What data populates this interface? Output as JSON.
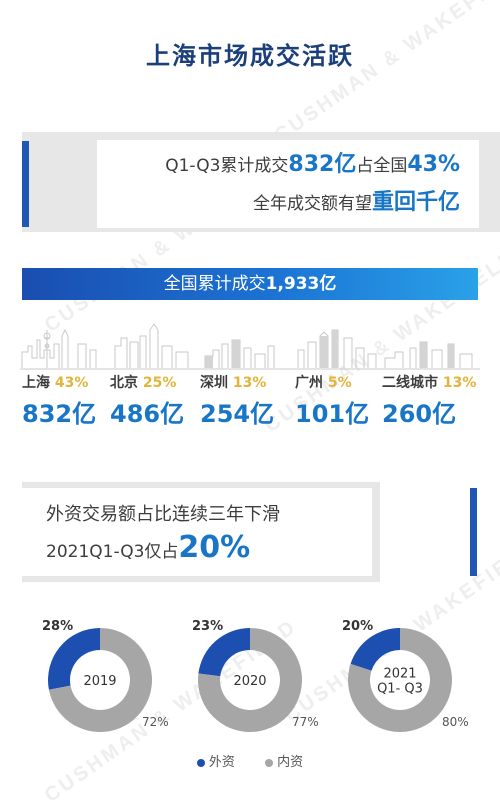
{
  "title": "上海市场成交活跃",
  "watermark": "CUSHMAN & WAKEFIELD",
  "headline": {
    "line1_prefix": "Q1-Q3累计成交",
    "line1_value": "832亿",
    "line1_mid": "占全国",
    "line1_pct": "43%",
    "line2_prefix": "全年成交额有望",
    "line2_emph": "重回千亿"
  },
  "national_banner": {
    "prefix": "全国累计成交",
    "value": "1,933亿"
  },
  "cities": [
    {
      "name": "上海",
      "pct": "43%",
      "value": "832亿"
    },
    {
      "name": "北京",
      "pct": "25%",
      "value": "486亿"
    },
    {
      "name": "深圳",
      "pct": "13%",
      "value": "254亿"
    },
    {
      "name": "广州",
      "pct": "5%",
      "value": "101亿"
    },
    {
      "name": "二线城市",
      "pct": "13%",
      "value": "260亿"
    }
  ],
  "foreign_section": {
    "line1": "外资交易额占比连续三年下滑",
    "line2_prefix": "2021Q1-Q3仅占",
    "line2_value": "20%"
  },
  "colors": {
    "foreign": "#1c4fb0",
    "domestic": "#a6a6a6",
    "title": "#1a3f7a",
    "value_blue": "#1976c6",
    "pct_gold": "#e2b53a"
  },
  "chart_data": [
    {
      "type": "pie",
      "title": "",
      "categories": [
        "外资",
        "内资"
      ],
      "values": [
        28,
        72
      ],
      "center_label": [
        "2019"
      ],
      "labels": [
        "28%",
        "72%"
      ]
    },
    {
      "type": "pie",
      "title": "",
      "categories": [
        "外资",
        "内资"
      ],
      "values": [
        23,
        77
      ],
      "center_label": [
        "2020"
      ],
      "labels": [
        "23%",
        "77%"
      ]
    },
    {
      "type": "pie",
      "title": "",
      "categories": [
        "外资",
        "内资"
      ],
      "values": [
        20,
        80
      ],
      "center_label": [
        "2021",
        "Q1- Q3"
      ],
      "labels": [
        "20%",
        "80%"
      ]
    }
  ],
  "legend": [
    {
      "label": "外资",
      "color": "#1c4fb0"
    },
    {
      "label": "内资",
      "color": "#a6a6a6"
    }
  ]
}
